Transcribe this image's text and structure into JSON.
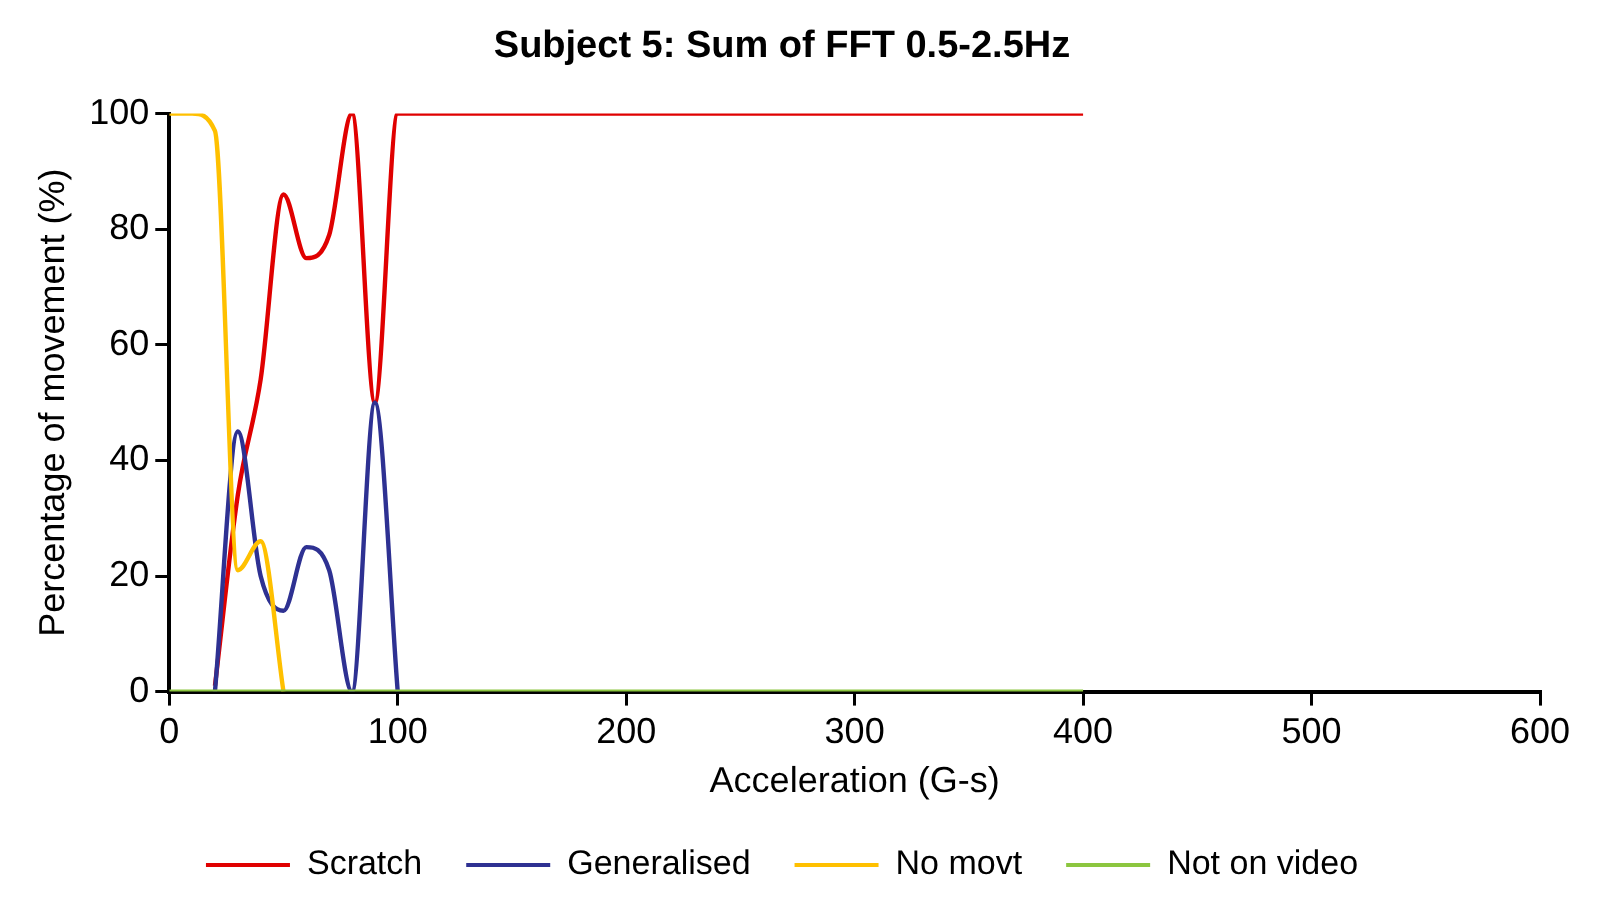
{
  "chart_data": {
    "type": "line",
    "title": "Subject 5: Sum of FFT 0.5-2.5Hz",
    "xlabel": "Acceleration (G-s)",
    "ylabel": "Percentage of movement (%)",
    "x": [
      0,
      10,
      20,
      30,
      40,
      50,
      60,
      70,
      80,
      90,
      100,
      110,
      120,
      130,
      140,
      150,
      160,
      170,
      180,
      190,
      200,
      210,
      220,
      230,
      240,
      250,
      260,
      270,
      280,
      290,
      300,
      310,
      320,
      330,
      340,
      350,
      360,
      370,
      380,
      390,
      400
    ],
    "series": [
      {
        "name": "Scratch",
        "color": "#e00000",
        "values": [
          null,
          null,
          1,
          34,
          54,
          86,
          75,
          79,
          100,
          50,
          100,
          100,
          100,
          100,
          100,
          100,
          100,
          100,
          100,
          100,
          100,
          100,
          100,
          100,
          100,
          100,
          100,
          100,
          100,
          100,
          100,
          100,
          100,
          100,
          100,
          100,
          100,
          100,
          100,
          100,
          100
        ]
      },
      {
        "name": "Generalised",
        "color": "#2e3192",
        "values": [
          null,
          null,
          0,
          45,
          20,
          14,
          25,
          21,
          0,
          50,
          0,
          null,
          null,
          null,
          null,
          null,
          null,
          null,
          null,
          null,
          null,
          null,
          null,
          null,
          null,
          null,
          null,
          null,
          null,
          null,
          null,
          null,
          null,
          null,
          null,
          null,
          null,
          null,
          null,
          null,
          null
        ]
      },
      {
        "name": "No movt",
        "color": "#ffc000",
        "values": [
          100,
          100,
          97,
          21,
          26,
          0,
          null,
          null,
          null,
          null,
          null,
          null,
          null,
          null,
          null,
          null,
          null,
          null,
          null,
          null,
          null,
          null,
          null,
          null,
          null,
          null,
          null,
          null,
          null,
          null,
          null,
          null,
          null,
          null,
          null,
          null,
          null,
          null,
          null,
          null,
          null
        ]
      },
      {
        "name": "Not on video",
        "color": "#8cc63f",
        "values": [
          0,
          0,
          0,
          0,
          0,
          0,
          0,
          0,
          0,
          0,
          0,
          0,
          0,
          0,
          0,
          0,
          0,
          0,
          0,
          0,
          0,
          0,
          0,
          0,
          0,
          0,
          0,
          0,
          0,
          0,
          0,
          0,
          0,
          0,
          0,
          0,
          0,
          0,
          0,
          0,
          0
        ]
      }
    ],
    "xlim": [
      0,
      600
    ],
    "xticks": [
      0,
      100,
      200,
      300,
      400,
      500,
      600
    ],
    "ylim": [
      0,
      100
    ],
    "yticks": [
      0,
      20,
      40,
      60,
      80,
      100
    ],
    "grid": false,
    "legend": "bottom",
    "marker": "none",
    "line_style": "solid"
  }
}
